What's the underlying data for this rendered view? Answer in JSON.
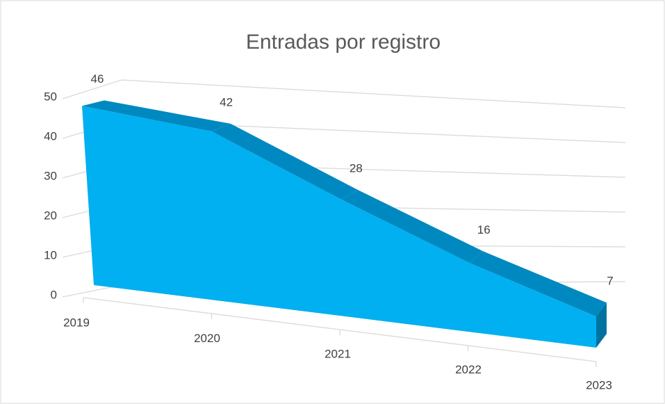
{
  "chart_data": {
    "type": "area3d",
    "title": "Entradas por registro",
    "categories": [
      "2019",
      "2020",
      "2021",
      "2022",
      "2023"
    ],
    "values": [
      46,
      42,
      28,
      16,
      7
    ],
    "color": "#00b0f0",
    "ylim": [
      0,
      50
    ],
    "yticks": [
      0,
      10,
      20,
      30,
      40,
      50
    ],
    "grid": true
  }
}
